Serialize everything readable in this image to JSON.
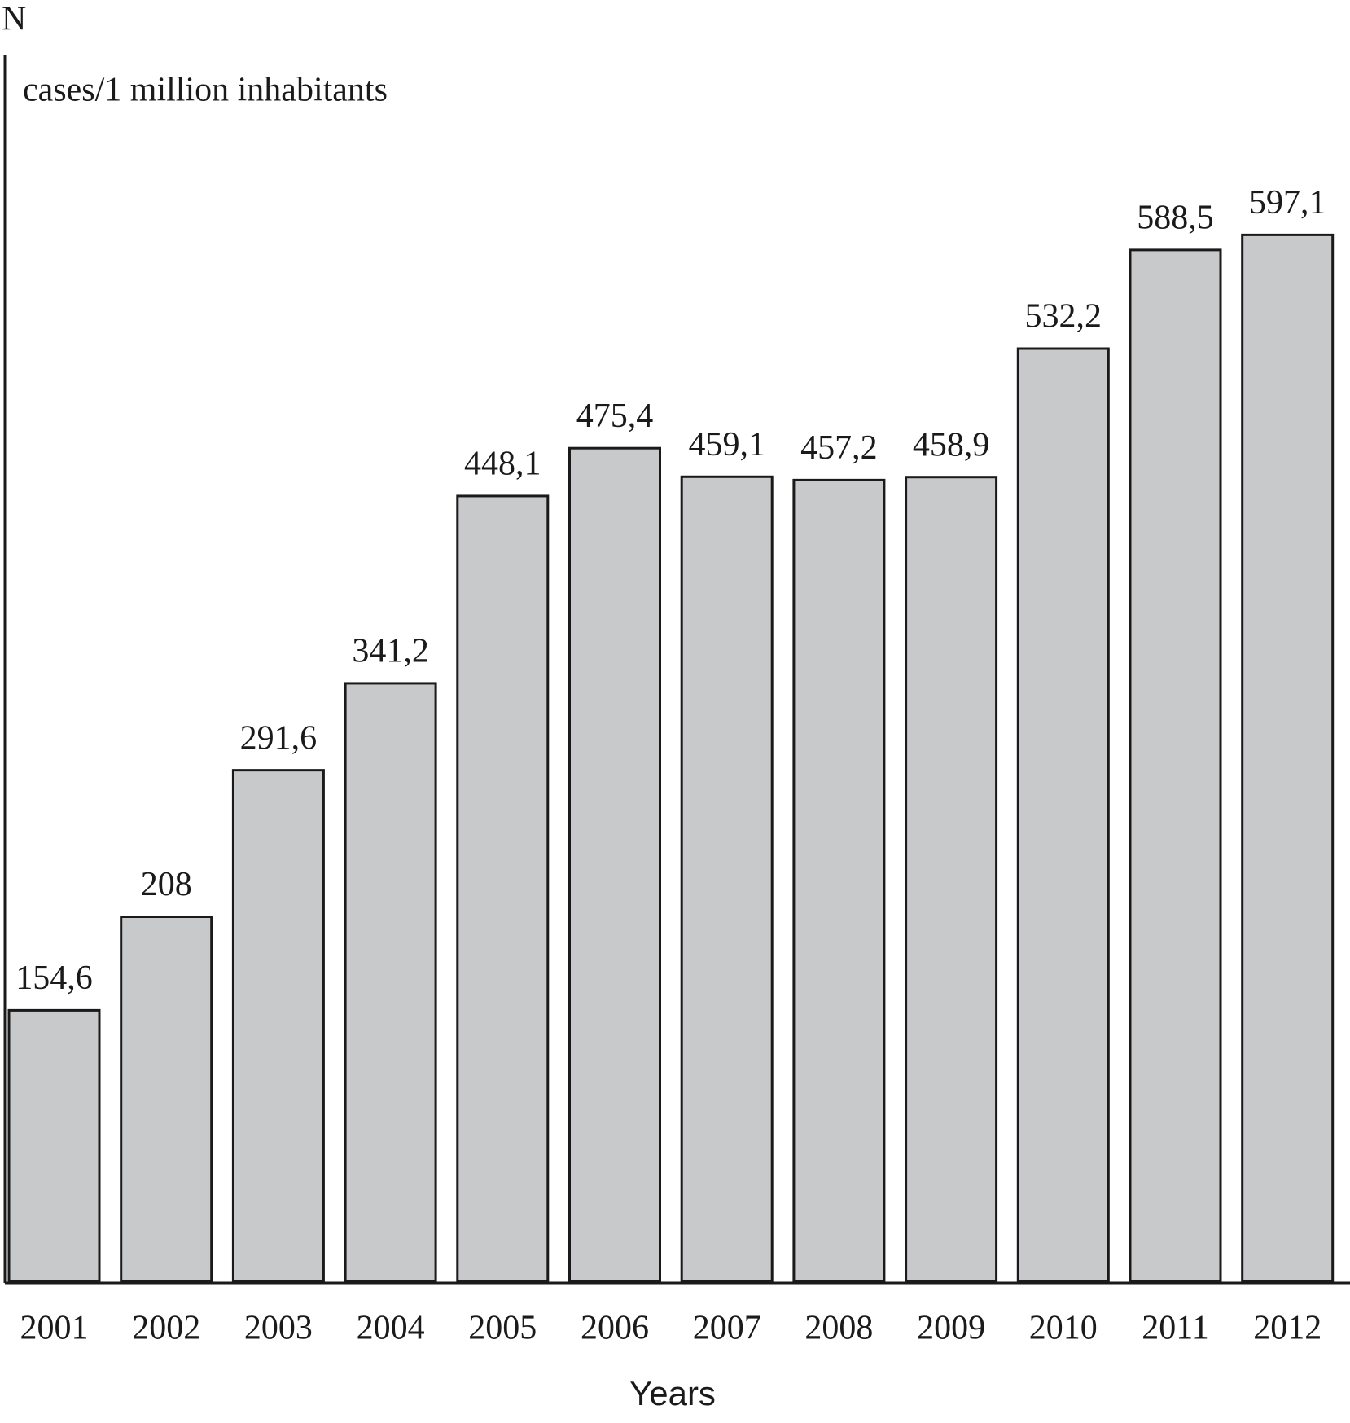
{
  "chart_data": {
    "type": "bar",
    "y_axis_label": "N",
    "y_unit_label": "cases/1 million inhabitants",
    "x_axis_label": "Years",
    "categories": [
      "2001",
      "2002",
      "2003",
      "2004",
      "2005",
      "2006",
      "2007",
      "2008",
      "2009",
      "2010",
      "2011",
      "2012"
    ],
    "values": [
      154.6,
      208,
      291.6,
      341.2,
      448.1,
      475.4,
      459.1,
      457.2,
      458.9,
      532.2,
      588.5,
      597.1
    ],
    "value_labels": [
      "154,6",
      "208",
      "291,6",
      "341,2",
      "448,1",
      "475,4",
      "459,1",
      "457,2",
      "458,9",
      "532,2",
      "588,5",
      "597,1"
    ],
    "color": "#c8c9cb",
    "ylim": [
      0,
      700
    ]
  }
}
